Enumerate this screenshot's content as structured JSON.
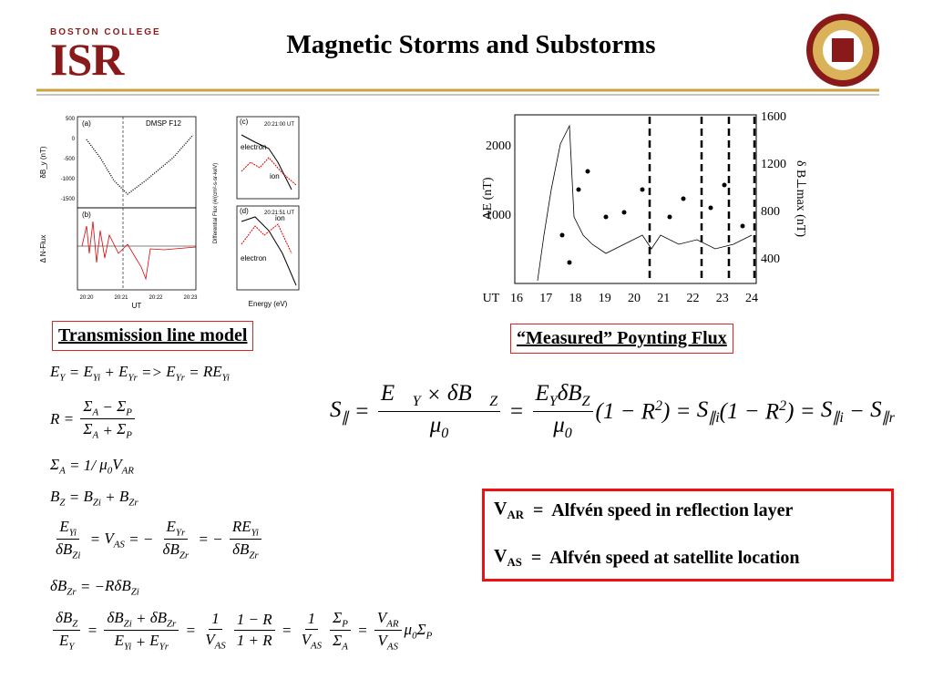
{
  "header": {
    "org": "BOSTON COLLEGE",
    "logo": "ISR",
    "title": "Magnetic Storms  and Substorms"
  },
  "left_figure": {
    "panels": [
      "(a)",
      "(b)",
      "(c)",
      "(d)"
    ],
    "satellite": "DMSP F12",
    "y_label_a": "δB_y (nT)",
    "y_label_b": "Δ N-Flux",
    "y_label_cd": "Differential Flux (#/(cm²-s-sr-keV)",
    "x_label_ab": "UT",
    "x_label_cd": "Energy (eV)",
    "ticks_a": [
      "500",
      "0",
      "-500",
      "-1000",
      "-1500"
    ],
    "ticks_ab_x": [
      "20:20",
      "20:21",
      "20:22",
      "20:23"
    ],
    "time_c": "20:21:00 UT",
    "time_d": "20:21:51 UT",
    "electron": "electron",
    "ion": "ion"
  },
  "right_figure": {
    "y_label": "AE (nT)",
    "y2_label": "δ B⊥max (nT)",
    "x_label": "UT",
    "x_ticks": [
      "16",
      "17",
      "18",
      "19",
      "20",
      "21",
      "22",
      "23",
      "24"
    ],
    "y_ticks": [
      "1000",
      "2000"
    ],
    "y2_ticks": [
      "400",
      "800",
      "1200",
      "1600"
    ]
  },
  "left_box": "Transmission line model",
  "right_box": "“Measured”  Poynting Flux",
  "equations": [
    [
      {
        "b": "E",
        "sub": "Y"
      },
      " = ",
      {
        "b": "E",
        "sub": "Yi"
      },
      " + ",
      {
        "b": "E",
        "sub": "Yr"
      },
      " => ",
      {
        "b": "E",
        "sub": "Yr"
      },
      " = ",
      {
        "b": "RE",
        "sub": "Yi"
      }
    ],
    [
      "R = ",
      {
        "num": [
          {
            "b": "Σ",
            "sub": "A"
          },
          " − ",
          {
            "b": "Σ",
            "sub": "P"
          }
        ],
        "den": [
          {
            "b": "Σ",
            "sub": "A"
          },
          " + ",
          {
            "b": "Σ",
            "sub": "P"
          }
        ]
      }
    ],
    [
      {
        "b": "Σ",
        "sub": "A"
      },
      " = 1/ ",
      {
        "b": "μ",
        "sub": "0"
      },
      {
        "b": "V",
        "sub": "AR"
      }
    ],
    [
      {
        "b": "B",
        "sub": "Z"
      },
      " = ",
      {
        "b": "B",
        "sub": "Zi"
      },
      " + ",
      {
        "b": "B",
        "sub": "Zr"
      }
    ],
    [
      {
        "num": [
          {
            "b": "E",
            "sub": "Yi"
          }
        ],
        "den": [
          {
            "b": "δB",
            "sub": "Zi"
          }
        ]
      },
      " = ",
      {
        "b": "V",
        "sub": "AS"
      },
      " = − ",
      {
        "num": [
          {
            "b": "E",
            "sub": "Yr"
          }
        ],
        "den": [
          {
            "b": "δB",
            "sub": "Zr"
          }
        ]
      },
      " = − ",
      {
        "num": [
          {
            "b": "RE",
            "sub": "Yi"
          }
        ],
        "den": [
          {
            "b": "δB",
            "sub": "Zr"
          }
        ]
      }
    ],
    [
      {
        "b": "δB",
        "sub": "Zr"
      },
      " = −",
      {
        "b": "RδB",
        "sub": "Zi"
      }
    ],
    [
      {
        "num": [
          {
            "b": "δB",
            "sub": "Z"
          }
        ],
        "den": [
          {
            "b": "E",
            "sub": "Y"
          }
        ]
      },
      " = ",
      {
        "num": [
          {
            "b": "δB",
            "sub": "Zi"
          },
          " + ",
          {
            "b": "δB",
            "sub": "Zr"
          }
        ],
        "den": [
          {
            "b": "E",
            "sub": "Yi"
          },
          " + ",
          {
            "b": "E",
            "sub": "Yr"
          }
        ]
      },
      " = ",
      {
        "num": [
          "1"
        ],
        "den": [
          {
            "b": "V",
            "sub": "AS"
          }
        ]
      },
      {
        "num": [
          "1 − R"
        ],
        "den": [
          "1 + R"
        ]
      },
      " = ",
      {
        "num": [
          "1"
        ],
        "den": [
          {
            "b": "V",
            "sub": "AS"
          }
        ]
      },
      {
        "num": [
          {
            "b": "Σ",
            "sub": "P"
          }
        ],
        "den": [
          {
            "b": "Σ",
            "sub": "A"
          }
        ]
      },
      " = ",
      {
        "num": [
          {
            "b": "V",
            "sub": "AR"
          }
        ],
        "den": [
          {
            "b": "V",
            "sub": "AS"
          }
        ]
      },
      {
        "b": "μ",
        "sub": "0"
      },
      {
        "b": "Σ",
        "sub": "P"
      }
    ]
  ],
  "poynting": [
    {
      "b": "S",
      "sub": "∥"
    },
    " = ",
    {
      "num": [
        {
          "b": "E⃗",
          "sub": "Y"
        },
        " × ",
        {
          "b": "δB⃗",
          "sub": "Z"
        }
      ],
      "den": [
        {
          "b": "μ",
          "sub": "0"
        }
      ]
    },
    " = ",
    {
      "num": [
        {
          "b": "E",
          "sub": "Y"
        },
        {
          "b": "δB",
          "sub": "Z"
        }
      ],
      "den": [
        {
          "b": "μ",
          "sub": "0"
        }
      ]
    },
    "(1 − ",
    {
      "b": "R",
      "sup": "2"
    },
    ") = ",
    {
      "b": "S",
      "sub": "∥i"
    },
    "(1 − ",
    {
      "b": "R",
      "sup": "2"
    },
    ") = ",
    {
      "b": "S",
      "sub": "∥i"
    },
    " − ",
    {
      "b": "S",
      "sub": "∥r"
    }
  ],
  "definitions": [
    [
      {
        "b": "V",
        "sub": "AR"
      },
      "  =  Alfvén speed in reflection layer"
    ],
    [
      {
        "b": "V",
        "sub": "AS"
      },
      "  =  Alfvén speed at satellite location"
    ]
  ]
}
